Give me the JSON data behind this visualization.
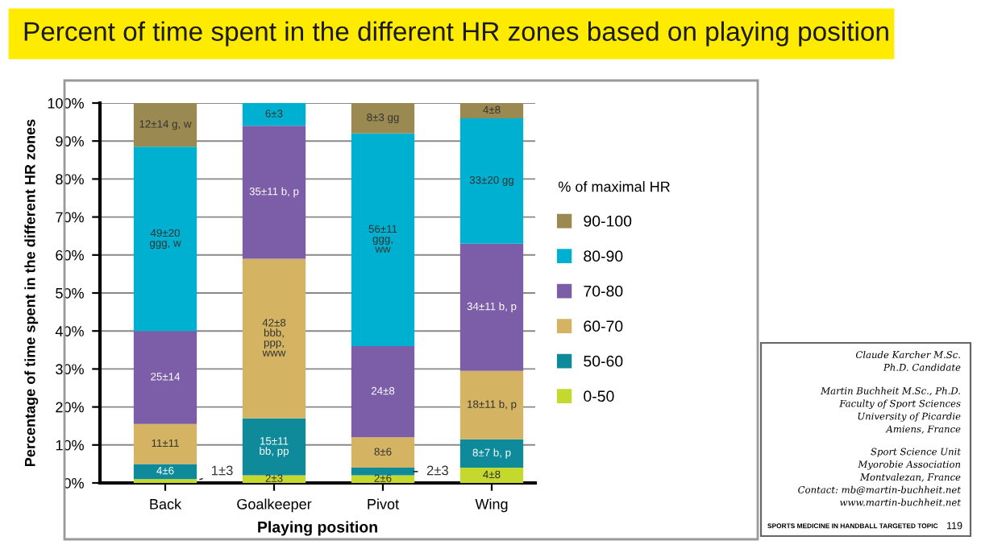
{
  "chart_data": {
    "type": "bar",
    "stacked": true,
    "title": "Percent of time spent in the different HR zones based on playing position",
    "xlabel": "Playing position",
    "ylabel": "Percentage of time spent in the different HR zones",
    "legend_title": "% of maximal HR",
    "categories": [
      "Back",
      "Goalkeeper",
      "Pivot",
      "Wing"
    ],
    "series": [
      {
        "name": "0-50",
        "color": "#c5d82e",
        "values": [
          1,
          2,
          2,
          4
        ],
        "value_labels": [
          "1±3",
          "2±3",
          "2±6",
          "4±8"
        ]
      },
      {
        "name": "50-60",
        "color": "#0e8a9a",
        "values": [
          4,
          15,
          2,
          7.5
        ],
        "value_labels": [
          "4±6",
          "15±11\nbb, pp",
          "2±3",
          "8±7 b, p"
        ]
      },
      {
        "name": "60-70",
        "color": "#d4b462",
        "values": [
          10.5,
          42,
          8,
          18
        ],
        "value_labels": [
          "11±11",
          "42±8\nbbb,\nppp,\nwww",
          "8±6",
          "18±11 b, p"
        ]
      },
      {
        "name": "70-80",
        "color": "#7b5ea7",
        "values": [
          24.5,
          35,
          24,
          33.5
        ],
        "value_labels": [
          "25±14",
          "35±11 b, p",
          "24±8",
          "34±11 b, p"
        ]
      },
      {
        "name": "80-90",
        "color": "#00b0d0",
        "values": [
          48.5,
          6,
          56,
          33
        ],
        "value_labels": [
          "49±20\nggg, w",
          "6±3",
          "56±11\nggg,\nww",
          "33±20 gg"
        ]
      },
      {
        "name": "90-100",
        "color": "#9a8a52",
        "values": [
          11.5,
          null,
          8,
          4
        ],
        "value_labels": [
          "12±14 g, w",
          null,
          "8±3 gg",
          "4±8"
        ]
      }
    ],
    "ylim": [
      0,
      100
    ],
    "yticks": [
      {
        "value": 0,
        "label": "0%"
      },
      {
        "value": 10,
        "label": "10%"
      },
      {
        "value": 20,
        "label": "20%"
      },
      {
        "value": 30,
        "label": "30%"
      },
      {
        "value": 40,
        "label": "40%"
      },
      {
        "value": 50,
        "label": "50%"
      },
      {
        "value": 60,
        "label": "60%"
      },
      {
        "value": 70,
        "label": "70%"
      },
      {
        "value": 80,
        "label": "80%"
      },
      {
        "value": 90,
        "label": "90%"
      },
      {
        "value": 100,
        "label": "100%"
      }
    ],
    "grid": "y",
    "legend": "right",
    "annotations": [
      "Claude Karcher M.Sc.\nPh.D. Candidate",
      "Martin Buchheit M.Sc., Ph.D.\nFaculty of Sport Sciences\nUniversity of Picardie\nAmiens, France",
      "Sport Science Unit\nMyorobie Association\nMontvalezan, France\nContact: mb@martin-buchheit.net\nwww.martin-buchheit.net",
      "SPORTS MEDICINE IN HANDBALL TARGETED TOPIC",
      "119"
    ]
  }
}
